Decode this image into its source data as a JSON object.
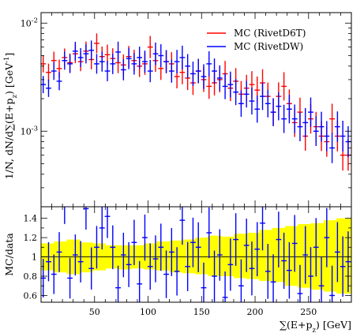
{
  "chart_data": [
    {
      "type": "scatter",
      "panel": "main",
      "ylabel": "1/N, dN/d∑(E+p_z) [GeV^{-1}]",
      "yscale": "log",
      "ylim": [
        0.0002,
        0.0125
      ],
      "xlim": [
        0,
        290
      ],
      "ytick_labels": [
        "10^{-2}",
        "10^{-3}"
      ],
      "grid": false,
      "legend": {
        "position": "top-right",
        "entries": [
          {
            "label": "MC (RivetD6T)",
            "color": "#ff0000"
          },
          {
            "label": "MC (RivetDW)",
            "color": "#0000ff"
          }
        ]
      },
      "series": [
        {
          "name": "MC (RivetD6T)",
          "color": "#ff0000",
          "points": [
            [
              2,
              0.0042
            ],
            [
              7,
              0.0035
            ],
            [
              12,
              0.0045
            ],
            [
              17,
              0.0038
            ],
            [
              22,
              0.0048
            ],
            [
              27,
              0.0043
            ],
            [
              32,
              0.0052
            ],
            [
              37,
              0.0044
            ],
            [
              42,
              0.0055
            ],
            [
              47,
              0.0046
            ],
            [
              52,
              0.0065
            ],
            [
              57,
              0.0049
            ],
            [
              62,
              0.0051
            ],
            [
              67,
              0.0047
            ],
            [
              72,
              0.0043
            ],
            [
              77,
              0.0041
            ],
            [
              82,
              0.0049
            ],
            [
              87,
              0.0045
            ],
            [
              92,
              0.004
            ],
            [
              97,
              0.0042
            ],
            [
              102,
              0.006
            ],
            [
              107,
              0.0045
            ],
            [
              112,
              0.0038
            ],
            [
              117,
              0.0044
            ],
            [
              122,
              0.0042
            ],
            [
              127,
              0.0032
            ],
            [
              132,
              0.0035
            ],
            [
              137,
              0.0031
            ],
            [
              142,
              0.0028
            ],
            [
              147,
              0.0036
            ],
            [
              152,
              0.003
            ],
            [
              157,
              0.0026
            ],
            [
              162,
              0.0028
            ],
            [
              167,
              0.003
            ],
            [
              172,
              0.0034
            ],
            [
              177,
              0.0025
            ],
            [
              182,
              0.0029
            ],
            [
              187,
              0.0022
            ],
            [
              192,
              0.0025
            ],
            [
              197,
              0.0027
            ],
            [
              202,
              0.0024
            ],
            [
              207,
              0.0028
            ],
            [
              212,
              0.0021
            ],
            [
              217,
              0.0015
            ],
            [
              222,
              0.0021
            ],
            [
              227,
              0.0026
            ],
            [
              232,
              0.0018
            ],
            [
              237,
              0.0012
            ],
            [
              242,
              0.0015
            ],
            [
              247,
              0.0009
            ],
            [
              252,
              0.0013
            ],
            [
              257,
              0.0011
            ],
            [
              262,
              0.0009
            ],
            [
              267,
              0.0008
            ],
            [
              272,
              0.0013
            ],
            [
              277,
              0.0009
            ],
            [
              282,
              0.0006
            ],
            [
              287,
              0.0006
            ]
          ]
        },
        {
          "name": "MC (RivetDW)",
          "color": "#0000ff",
          "points": [
            [
              2,
              0.0027
            ],
            [
              7,
              0.0025
            ],
            [
              12,
              0.0036
            ],
            [
              17,
              0.0029
            ],
            [
              22,
              0.0045
            ],
            [
              27,
              0.0042
            ],
            [
              32,
              0.0055
            ],
            [
              37,
              0.0048
            ],
            [
              42,
              0.0052
            ],
            [
              47,
              0.0056
            ],
            [
              52,
              0.0042
            ],
            [
              57,
              0.0044
            ],
            [
              62,
              0.0036
            ],
            [
              67,
              0.0042
            ],
            [
              72,
              0.0054
            ],
            [
              77,
              0.0037
            ],
            [
              82,
              0.0047
            ],
            [
              87,
              0.0042
            ],
            [
              92,
              0.0048
            ],
            [
              97,
              0.0044
            ],
            [
              102,
              0.0036
            ],
            [
              107,
              0.0052
            ],
            [
              112,
              0.005
            ],
            [
              117,
              0.0044
            ],
            [
              122,
              0.0036
            ],
            [
              127,
              0.0044
            ],
            [
              132,
              0.0048
            ],
            [
              137,
              0.004
            ],
            [
              142,
              0.0034
            ],
            [
              147,
              0.0036
            ],
            [
              152,
              0.0032
            ],
            [
              157,
              0.0042
            ],
            [
              162,
              0.0036
            ],
            [
              167,
              0.0031
            ],
            [
              172,
              0.0026
            ],
            [
              177,
              0.0027
            ],
            [
              182,
              0.0023
            ],
            [
              187,
              0.0018
            ],
            [
              192,
              0.0022
            ],
            [
              197,
              0.0019
            ],
            [
              202,
              0.0016
            ],
            [
              207,
              0.0021
            ],
            [
              212,
              0.0018
            ],
            [
              217,
              0.0015
            ],
            [
              222,
              0.0017
            ],
            [
              227,
              0.0013
            ],
            [
              232,
              0.0016
            ],
            [
              237,
              0.0013
            ],
            [
              242,
              0.0011
            ],
            [
              247,
              0.0012
            ],
            [
              252,
              0.0015
            ],
            [
              257,
              0.001
            ],
            [
              262,
              0.0011
            ],
            [
              267,
              0.0009
            ],
            [
              272,
              0.0007
            ],
            [
              277,
              0.0011
            ],
            [
              282,
              0.0009
            ],
            [
              287,
              0.0008
            ]
          ]
        }
      ]
    },
    {
      "type": "scatter",
      "panel": "ratio",
      "xlabel": "∑(E+p_z) [GeV]",
      "ylabel": "MC/data",
      "xlim": [
        0,
        290
      ],
      "ylim": [
        0.53,
        1.52
      ],
      "xticks": [
        50,
        100,
        150,
        200,
        250
      ],
      "yticks": [
        0.6,
        0.8,
        1,
        1.2,
        1.4
      ],
      "ytick_labels": [
        "0.6",
        "0.8",
        "1",
        "1.2",
        "1.4"
      ],
      "reference_line": 1,
      "band_color": "#ffff00",
      "band": [
        [
          0,
          0.86,
          1.14
        ],
        [
          12,
          0.84,
          1.16
        ],
        [
          24,
          0.82,
          1.18
        ],
        [
          36,
          0.84,
          1.15
        ],
        [
          48,
          0.86,
          1.14
        ],
        [
          60,
          0.88,
          1.12
        ],
        [
          72,
          0.87,
          1.12
        ],
        [
          84,
          0.88,
          1.12
        ],
        [
          96,
          0.87,
          1.14
        ],
        [
          108,
          0.86,
          1.16
        ],
        [
          120,
          0.84,
          1.17
        ],
        [
          132,
          0.83,
          1.18
        ],
        [
          144,
          0.82,
          1.2
        ],
        [
          156,
          0.8,
          1.22
        ],
        [
          168,
          0.8,
          1.21
        ],
        [
          180,
          0.78,
          1.24
        ],
        [
          192,
          0.77,
          1.25
        ],
        [
          204,
          0.75,
          1.28
        ],
        [
          216,
          0.74,
          1.3
        ],
        [
          228,
          0.7,
          1.32
        ],
        [
          240,
          0.68,
          1.34
        ],
        [
          252,
          0.66,
          1.35
        ],
        [
          264,
          0.64,
          1.38
        ],
        [
          276,
          0.62,
          1.4
        ],
        [
          290,
          0.6,
          1.42
        ]
      ],
      "series": [
        {
          "name": "MC (RivetD6T)",
          "color": "#ff0000",
          "points": []
        },
        {
          "name": "MC (RivetDW)",
          "color": "#0000ff",
          "points": [
            [
              2,
              0.78
            ],
            [
              7,
              0.95
            ],
            [
              12,
              0.82
            ],
            [
              17,
              1.05
            ],
            [
              22,
              1.55
            ],
            [
              27,
              0.78
            ],
            [
              32,
              1.02
            ],
            [
              37,
              0.95
            ],
            [
              42,
              1.5
            ],
            [
              47,
              0.88
            ],
            [
              52,
              1.1
            ],
            [
              57,
              1.3
            ],
            [
              62,
              1.42
            ],
            [
              67,
              1.1
            ],
            [
              72,
              0.68
            ],
            [
              77,
              1.02
            ],
            [
              82,
              0.92
            ],
            [
              87,
              1.15
            ],
            [
              92,
              0.72
            ],
            [
              97,
              1.2
            ],
            [
              102,
              0.9
            ],
            [
              107,
              0.98
            ],
            [
              112,
              1.1
            ],
            [
              117,
              0.82
            ],
            [
              122,
              1.05
            ],
            [
              127,
              0.85
            ],
            [
              132,
              1.38
            ],
            [
              137,
              0.9
            ],
            [
              142,
              1.15
            ],
            [
              147,
              1.1
            ],
            [
              152,
              0.68
            ],
            [
              157,
              1.25
            ],
            [
              162,
              0.8
            ],
            [
              167,
              1.02
            ],
            [
              172,
              0.58
            ],
            [
              177,
              0.92
            ],
            [
              182,
              1.18
            ],
            [
              187,
              0.7
            ],
            [
              192,
              1.12
            ],
            [
              197,
              0.88
            ],
            [
              202,
              1.08
            ],
            [
              207,
              1.35
            ],
            [
              212,
              0.85
            ],
            [
              217,
              0.74
            ],
            [
              222,
              1.18
            ],
            [
              227,
              0.96
            ],
            [
              232,
              0.86
            ],
            [
              237,
              1.14
            ],
            [
              242,
              0.62
            ],
            [
              247,
              1.02
            ],
            [
              252,
              0.8
            ],
            [
              257,
              1.1
            ],
            [
              262,
              0.7
            ],
            [
              267,
              1.2
            ],
            [
              272,
              0.6
            ],
            [
              277,
              1.05
            ],
            [
              282,
              0.9
            ],
            [
              287,
              0.95
            ]
          ]
        }
      ]
    }
  ]
}
